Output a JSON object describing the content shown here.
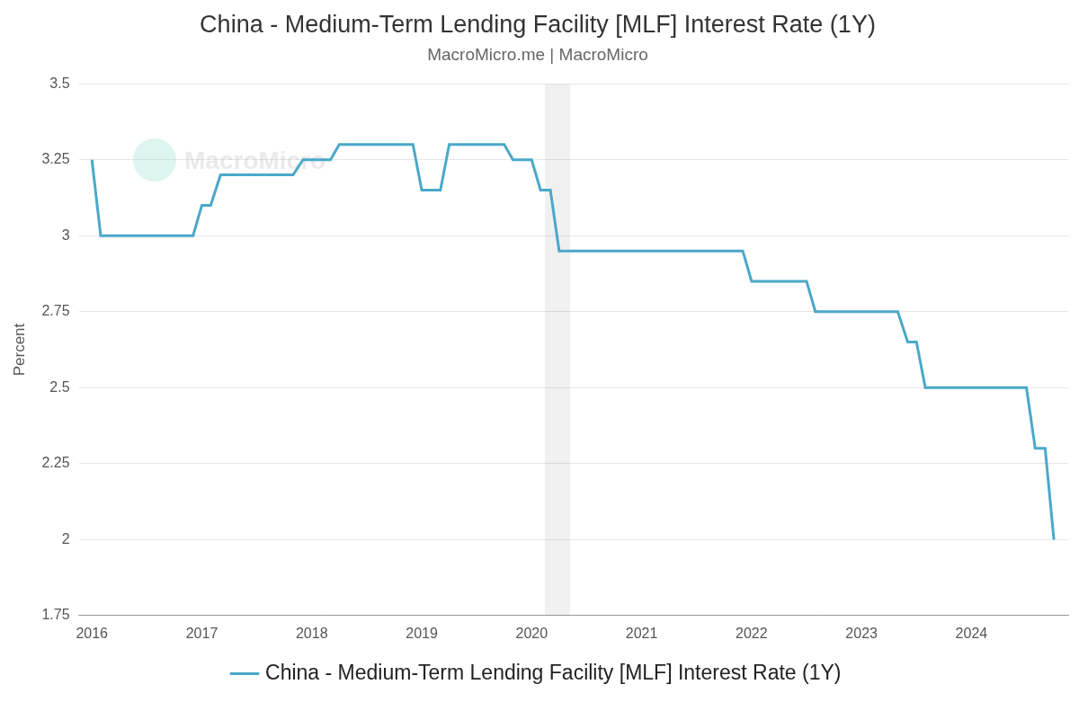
{
  "chart_data": {
    "type": "line",
    "title": "China - Medium-Term Lending Facility [MLF] Interest Rate (1Y)",
    "subtitle": "MacroMicro.me | MacroMicro",
    "watermark": "MacroMicro",
    "y_label": "Percent",
    "x": [
      2016.0,
      2016.08,
      2016.92,
      2017.0,
      2017.08,
      2017.17,
      2017.83,
      2017.92,
      2018.17,
      2018.25,
      2018.92,
      2019.0,
      2019.17,
      2019.25,
      2019.75,
      2019.83,
      2020.0,
      2020.08,
      2020.17,
      2020.25,
      2021.92,
      2022.0,
      2022.5,
      2022.58,
      2023.33,
      2023.42,
      2023.5,
      2023.58,
      2024.5,
      2024.58,
      2024.67,
      2024.75
    ],
    "series": [
      {
        "name": "China - Medium-Term Lending Facility [MLF] Interest Rate (1Y)",
        "color": "#4aa8c8",
        "values": [
          3.25,
          3.0,
          3.0,
          3.1,
          3.1,
          3.2,
          3.2,
          3.25,
          3.25,
          3.3,
          3.3,
          3.15,
          3.15,
          3.3,
          3.3,
          3.25,
          3.25,
          3.15,
          3.15,
          2.95,
          2.95,
          2.85,
          2.85,
          2.75,
          2.75,
          2.65,
          2.65,
          2.5,
          2.5,
          2.3,
          2.3,
          2.0
        ]
      }
    ],
    "shaded_ranges": [
      [
        2020.12,
        2020.35
      ]
    ],
    "xlim": [
      2015.88,
      2024.88
    ],
    "xticks": [
      2016,
      2017,
      2018,
      2019,
      2020,
      2021,
      2022,
      2023,
      2024
    ],
    "ylim": [
      1.75,
      3.5
    ],
    "yticks": [
      1.75,
      2,
      2.25,
      2.5,
      2.75,
      3,
      3.25,
      3.5
    ],
    "grid": true,
    "legend": "bottom"
  }
}
